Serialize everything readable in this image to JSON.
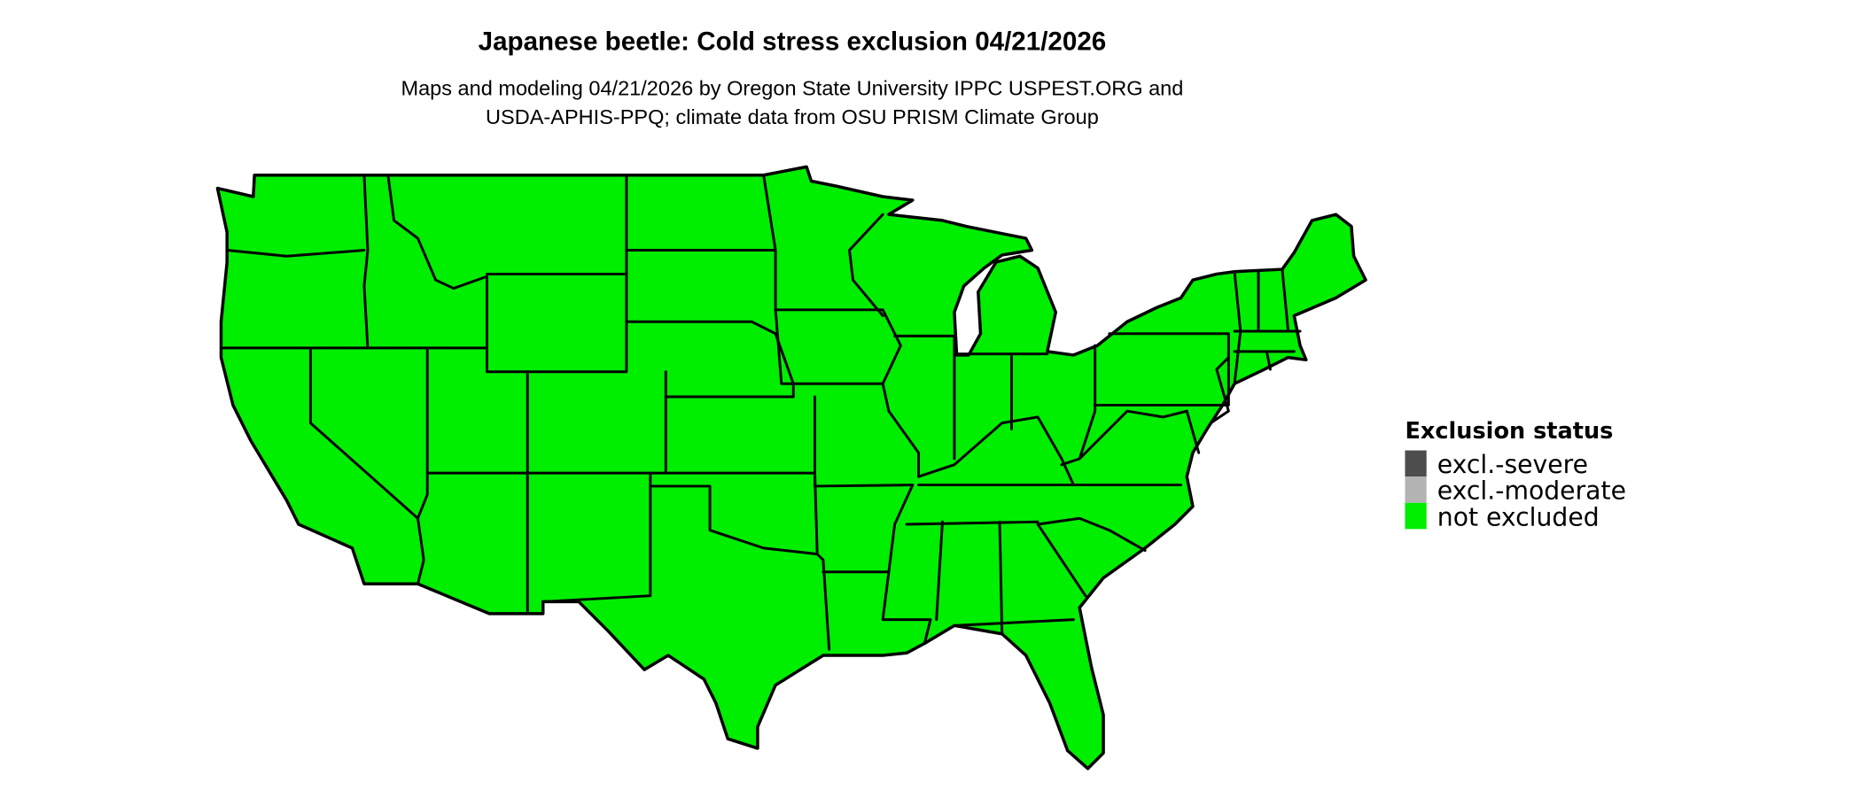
{
  "title": "Japanese beetle: Cold stress exclusion 04/21/2026",
  "subtitle_lines": [
    "Maps and modeling 04/21/2026 by Oregon State University IPPC USPEST.ORG and",
    "USDA-APHIS-PPQ; climate data from OSU PRISM Climate Group"
  ],
  "map": {
    "region": "Contiguous United States",
    "status_shown": "not excluded"
  },
  "legend": {
    "title": "Exclusion status",
    "items": [
      {
        "label": "excl.-severe",
        "color": "#4d4d4d"
      },
      {
        "label": "excl.-moderate",
        "color": "#b3b3b3"
      },
      {
        "label": "not excluded",
        "color": "#00ee00"
      }
    ]
  }
}
